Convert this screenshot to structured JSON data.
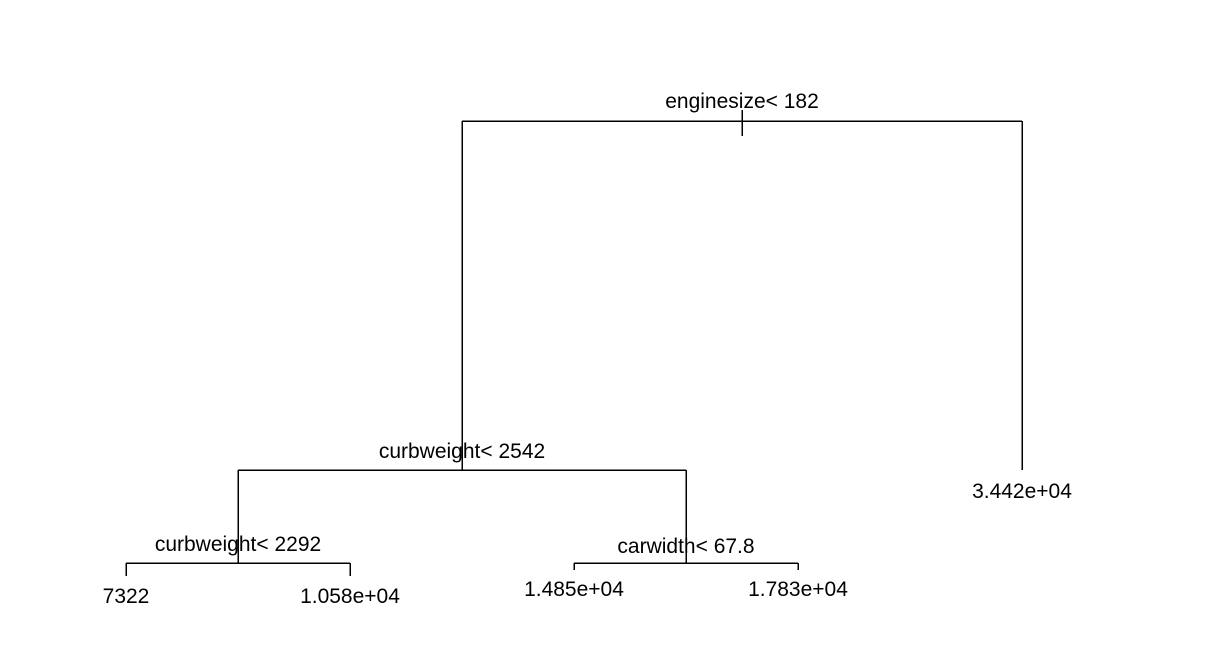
{
  "tree": {
    "root": {
      "split": "enginesize< 182",
      "left": {
        "split": "curbweight< 2542",
        "left": {
          "split": "curbweight< 2292",
          "left": {
            "leaf": "7322"
          },
          "right": {
            "leaf": "1.058e+04"
          }
        },
        "right": {
          "split": "carwidth< 67.8",
          "left": {
            "leaf": "1.485e+04"
          },
          "right": {
            "leaf": "1.783e+04"
          }
        }
      },
      "right": {
        "leaf": "3.442e+04"
      }
    }
  },
  "colors": {
    "line": "#000000",
    "text": "#000000",
    "background": "#ffffff"
  }
}
